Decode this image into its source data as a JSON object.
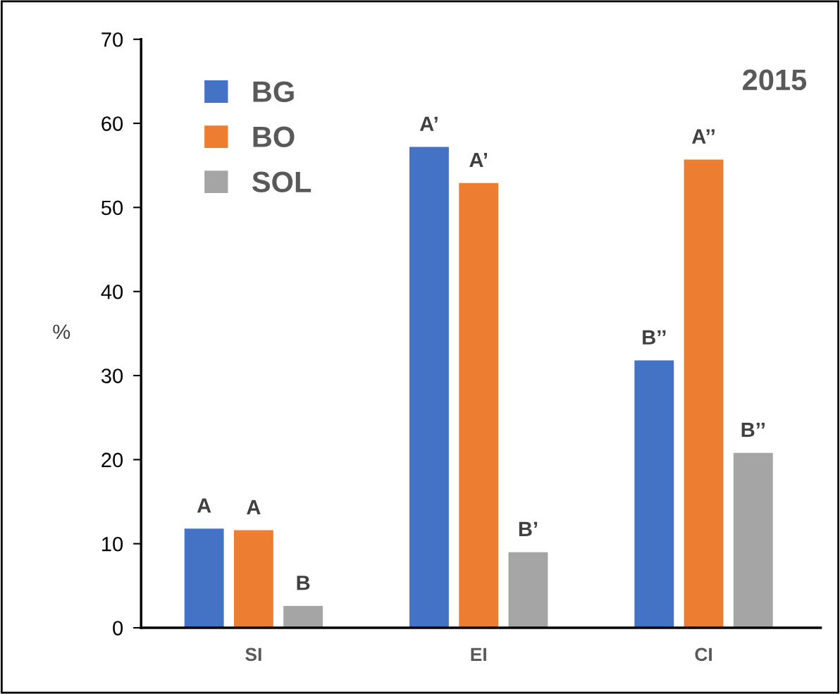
{
  "chart_data": {
    "type": "bar",
    "ylabel": "%",
    "categories": [
      "SI",
      "EI",
      "CI"
    ],
    "series": [
      {
        "name": "BG",
        "color": "#4472c4",
        "values": [
          11.8,
          57.2,
          31.8
        ]
      },
      {
        "name": "BO",
        "color": "#ed7d31",
        "values": [
          11.6,
          52.9,
          55.7
        ]
      },
      {
        "name": "SOL",
        "color": "#a5a5a5",
        "values": [
          2.6,
          9.0,
          20.8
        ]
      }
    ],
    "ylim": [
      0,
      70
    ],
    "yticks": [
      0,
      10,
      20,
      30,
      40,
      50,
      60,
      70
    ],
    "grid": false,
    "legend": "top left",
    "annotations": [
      "2015",
      "A",
      "A",
      "B",
      "A’",
      "A’",
      "B’",
      "B’’",
      "A’’",
      "B’’"
    ]
  }
}
